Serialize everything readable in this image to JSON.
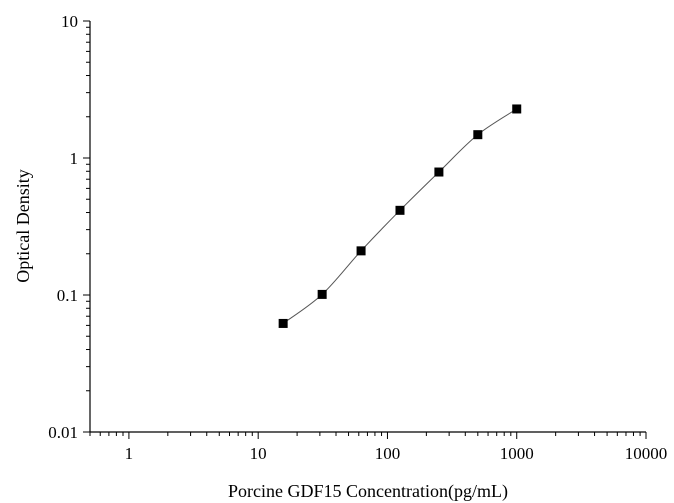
{
  "chart_data": {
    "type": "scatter",
    "title": "",
    "xlabel": "Porcine GDF15 Concentration(pg/mL)",
    "ylabel": "Optical Density",
    "x_scale": "log",
    "y_scale": "log",
    "xlim": [
      0.5,
      10000
    ],
    "ylim": [
      0.01,
      10
    ],
    "x_ticks": [
      1,
      10,
      100,
      1000,
      10000
    ],
    "x_tick_labels": [
      "1",
      "10",
      "100",
      "1000",
      "10000"
    ],
    "y_ticks": [
      0.01,
      0.1,
      1,
      10
    ],
    "y_tick_labels": [
      "0.01",
      "0.1",
      "1",
      "10"
    ],
    "grid": false,
    "legend": "none",
    "series": [
      {
        "x": [
          15.6,
          31.25,
          62.5,
          125,
          250,
          500,
          1000
        ],
        "y": [
          0.062,
          0.101,
          0.21,
          0.415,
          0.79,
          1.48,
          2.28
        ],
        "marker": "square",
        "line": "fitted-curve",
        "color": "#000000",
        "line_color": "#555555"
      }
    ]
  }
}
